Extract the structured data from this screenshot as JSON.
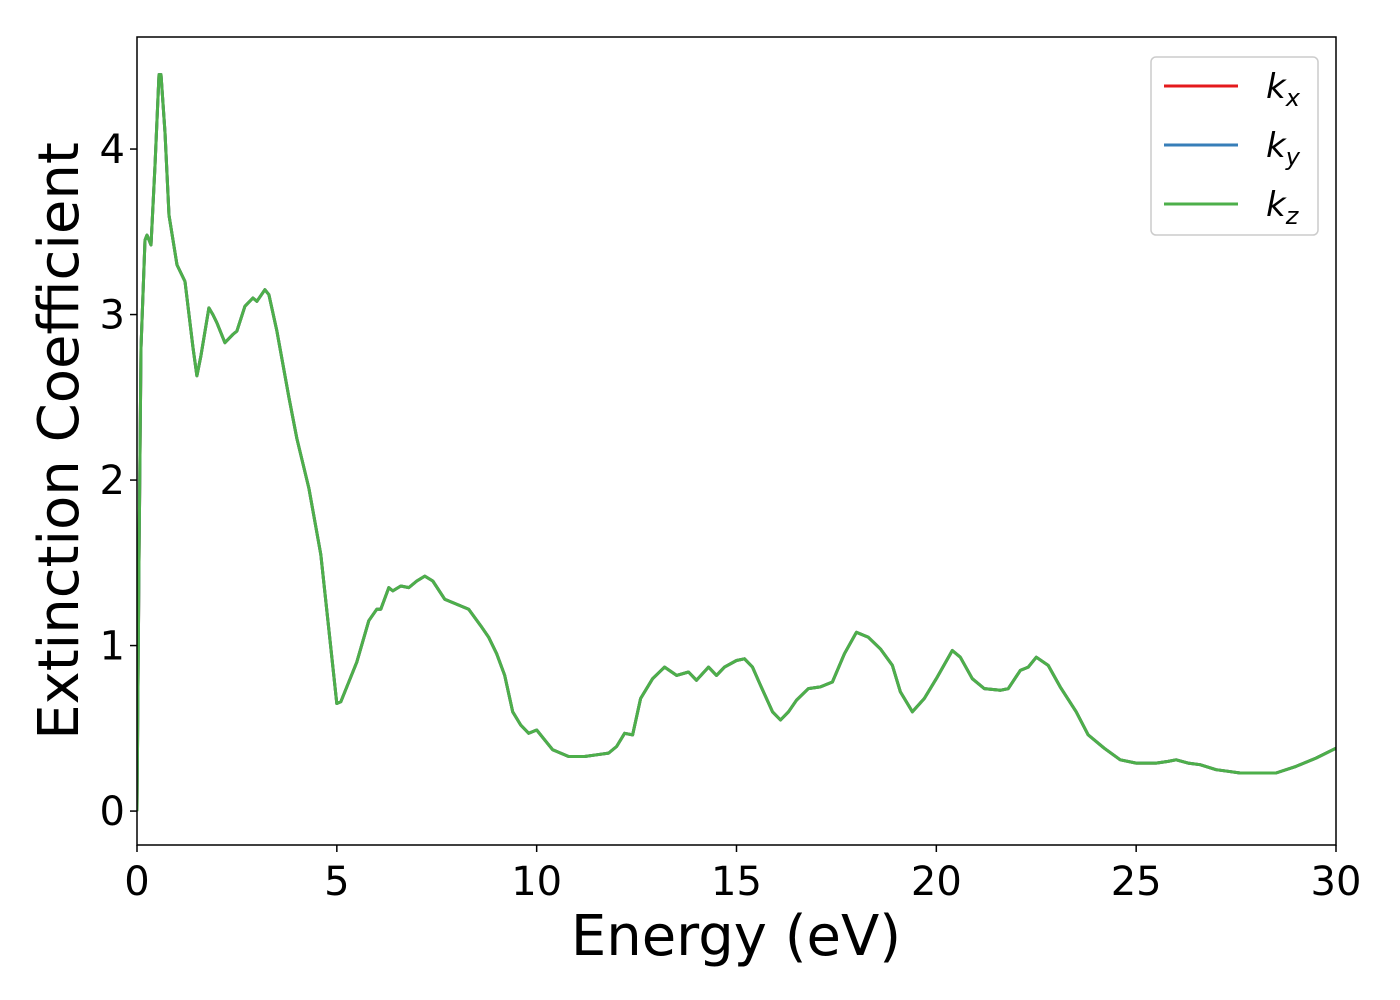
{
  "chart_data": {
    "type": "line",
    "xlabel": "Energy (eV)",
    "ylabel": "Extinction Coefficient",
    "x": [
      0,
      0.05,
      0.1,
      0.2,
      0.25,
      0.35,
      0.45,
      0.55,
      0.6,
      0.7,
      0.8,
      1.0,
      1.2,
      1.4,
      1.5,
      1.6,
      1.8,
      1.9,
      2.0,
      2.2,
      2.4,
      2.5,
      2.7,
      2.9,
      3.0,
      3.2,
      3.3,
      3.5,
      3.8,
      4.0,
      4.3,
      4.6,
      4.8,
      5.0,
      5.1,
      5.3,
      5.5,
      5.8,
      6.0,
      6.1,
      6.3,
      6.4,
      6.6,
      6.8,
      7.0,
      7.2,
      7.4,
      7.7,
      8.0,
      8.3,
      8.6,
      8.8,
      9.0,
      9.2,
      9.4,
      9.6,
      9.8,
      10.0,
      10.2,
      10.4,
      10.8,
      11.2,
      11.5,
      11.8,
      12.0,
      12.2,
      12.4,
      12.6,
      12.9,
      13.2,
      13.5,
      13.8,
      14.0,
      14.3,
      14.5,
      14.7,
      15.0,
      15.2,
      15.4,
      15.6,
      15.9,
      16.1,
      16.3,
      16.5,
      16.8,
      17.1,
      17.4,
      17.7,
      18.0,
      18.3,
      18.6,
      18.9,
      19.1,
      19.4,
      19.7,
      20.0,
      20.4,
      20.6,
      20.9,
      21.2,
      21.6,
      21.8,
      22.1,
      22.3,
      22.5,
      22.8,
      23.1,
      23.5,
      23.8,
      24.2,
      24.6,
      25.0,
      25.5,
      25.8,
      26.0,
      26.3,
      26.6,
      27.0,
      27.3,
      27.6,
      28.0,
      28.5,
      29.0,
      29.5,
      30.0
    ],
    "series": [
      {
        "name": "kx",
        "color": "#e41a1c",
        "values": [
          0,
          1.5,
          2.8,
          3.45,
          3.48,
          3.42,
          3.9,
          4.45,
          4.45,
          4.1,
          3.6,
          3.3,
          3.2,
          2.8,
          2.63,
          2.75,
          3.04,
          3.0,
          2.95,
          2.83,
          2.88,
          2.9,
          3.05,
          3.1,
          3.08,
          3.15,
          3.12,
          2.9,
          2.5,
          2.25,
          1.95,
          1.55,
          1.1,
          0.65,
          0.66,
          0.78,
          0.9,
          1.15,
          1.22,
          1.22,
          1.35,
          1.33,
          1.36,
          1.35,
          1.39,
          1.42,
          1.39,
          1.28,
          1.25,
          1.22,
          1.12,
          1.05,
          0.95,
          0.82,
          0.6,
          0.52,
          0.47,
          0.49,
          0.43,
          0.37,
          0.33,
          0.33,
          0.34,
          0.35,
          0.39,
          0.47,
          0.46,
          0.68,
          0.8,
          0.87,
          0.82,
          0.84,
          0.79,
          0.87,
          0.82,
          0.87,
          0.91,
          0.92,
          0.87,
          0.76,
          0.6,
          0.55,
          0.6,
          0.67,
          0.74,
          0.75,
          0.78,
          0.95,
          1.08,
          1.05,
          0.98,
          0.88,
          0.72,
          0.6,
          0.68,
          0.8,
          0.97,
          0.93,
          0.8,
          0.74,
          0.73,
          0.74,
          0.85,
          0.87,
          0.93,
          0.88,
          0.75,
          0.6,
          0.46,
          0.38,
          0.31,
          0.29,
          0.29,
          0.3,
          0.31,
          0.29,
          0.28,
          0.25,
          0.24,
          0.23,
          0.23,
          0.23,
          0.27,
          0.32,
          0.38
        ]
      },
      {
        "name": "ky",
        "color": "#377eb8",
        "values": [
          0,
          1.5,
          2.8,
          3.45,
          3.48,
          3.42,
          3.9,
          4.45,
          4.45,
          4.1,
          3.6,
          3.3,
          3.2,
          2.8,
          2.63,
          2.75,
          3.04,
          3.0,
          2.95,
          2.83,
          2.88,
          2.9,
          3.05,
          3.1,
          3.08,
          3.15,
          3.12,
          2.9,
          2.5,
          2.25,
          1.95,
          1.55,
          1.1,
          0.65,
          0.66,
          0.78,
          0.9,
          1.15,
          1.22,
          1.22,
          1.35,
          1.33,
          1.36,
          1.35,
          1.39,
          1.42,
          1.39,
          1.28,
          1.25,
          1.22,
          1.12,
          1.05,
          0.95,
          0.82,
          0.6,
          0.52,
          0.47,
          0.49,
          0.43,
          0.37,
          0.33,
          0.33,
          0.34,
          0.35,
          0.39,
          0.47,
          0.46,
          0.68,
          0.8,
          0.87,
          0.82,
          0.84,
          0.79,
          0.87,
          0.82,
          0.87,
          0.91,
          0.92,
          0.87,
          0.76,
          0.6,
          0.55,
          0.6,
          0.67,
          0.74,
          0.75,
          0.78,
          0.95,
          1.08,
          1.05,
          0.98,
          0.88,
          0.72,
          0.6,
          0.68,
          0.8,
          0.97,
          0.93,
          0.8,
          0.74,
          0.73,
          0.74,
          0.85,
          0.87,
          0.93,
          0.88,
          0.75,
          0.6,
          0.46,
          0.38,
          0.31,
          0.29,
          0.29,
          0.3,
          0.31,
          0.29,
          0.28,
          0.25,
          0.24,
          0.23,
          0.23,
          0.23,
          0.27,
          0.32,
          0.38
        ]
      },
      {
        "name": "kz",
        "color": "#4daf4a",
        "values": [
          0,
          1.5,
          2.8,
          3.45,
          3.48,
          3.42,
          3.9,
          4.45,
          4.45,
          4.1,
          3.6,
          3.3,
          3.2,
          2.8,
          2.63,
          2.75,
          3.04,
          3.0,
          2.95,
          2.83,
          2.88,
          2.9,
          3.05,
          3.1,
          3.08,
          3.15,
          3.12,
          2.9,
          2.5,
          2.25,
          1.95,
          1.55,
          1.1,
          0.65,
          0.66,
          0.78,
          0.9,
          1.15,
          1.22,
          1.22,
          1.35,
          1.33,
          1.36,
          1.35,
          1.39,
          1.42,
          1.39,
          1.28,
          1.25,
          1.22,
          1.12,
          1.05,
          0.95,
          0.82,
          0.6,
          0.52,
          0.47,
          0.49,
          0.43,
          0.37,
          0.33,
          0.33,
          0.34,
          0.35,
          0.39,
          0.47,
          0.46,
          0.68,
          0.8,
          0.87,
          0.82,
          0.84,
          0.79,
          0.87,
          0.82,
          0.87,
          0.91,
          0.92,
          0.87,
          0.76,
          0.6,
          0.55,
          0.6,
          0.67,
          0.74,
          0.75,
          0.78,
          0.95,
          1.08,
          1.05,
          0.98,
          0.88,
          0.72,
          0.6,
          0.68,
          0.8,
          0.97,
          0.93,
          0.8,
          0.74,
          0.73,
          0.74,
          0.85,
          0.87,
          0.93,
          0.88,
          0.75,
          0.6,
          0.46,
          0.38,
          0.31,
          0.29,
          0.29,
          0.3,
          0.31,
          0.29,
          0.28,
          0.25,
          0.24,
          0.23,
          0.23,
          0.23,
          0.27,
          0.32,
          0.38
        ]
      }
    ],
    "xlim": [
      0,
      30
    ],
    "xticks": [
      0,
      5,
      10,
      15,
      20,
      25,
      30
    ],
    "ylim": [
      -0.205,
      4.677
    ],
    "yticks": [
      0,
      1,
      2,
      3,
      4
    ],
    "legend": "upper right"
  }
}
